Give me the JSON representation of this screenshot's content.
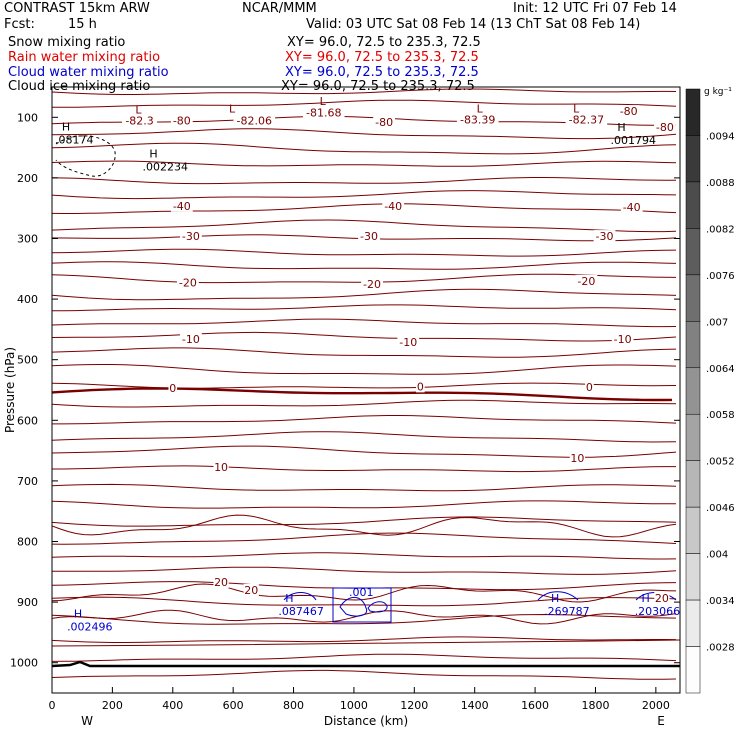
{
  "header": {
    "title": "CONTRAST 15km ARW",
    "org": "NCAR/MMM",
    "init": "Init: 12 UTC Fri 07 Feb 14",
    "fcst_label": "Fcst:",
    "fcst_value": "15 h",
    "valid": "Valid: 03 UTC Sat 08 Feb 14 (13 ChT Sat 08 Feb 14)",
    "fields": [
      {
        "name": "Snow mixing ratio",
        "xy": "XY=  96.0, 72.5 to 235.3, 72.5",
        "color": "#000000"
      },
      {
        "name": "Rain water mixing ratio",
        "xy": "XY=  96.0, 72.5 to 235.3, 72.5",
        "color": "#e00000"
      },
      {
        "name": "Cloud water mixing ratio",
        "xy": "XY=  96.0, 72.5 to 235.3, 72.5",
        "color": "#0000cc"
      },
      {
        "name": "Cloud ice mixing ratio",
        "xy": "XY=  96.0, 72.5 to 235.3, 72.5",
        "color": "#000000"
      }
    ]
  },
  "chart_data": {
    "type": "contour",
    "xlabel": "Distance (km)",
    "ylabel": "Pressure (hPa)",
    "xlim": [
      0,
      2080
    ],
    "ylim": [
      1050,
      50
    ],
    "x_ticks": [
      0,
      200,
      400,
      600,
      800,
      1000,
      1200,
      1400,
      1600,
      1800,
      2000
    ],
    "y_ticks": [
      100,
      200,
      300,
      400,
      500,
      600,
      700,
      800,
      900,
      1000
    ],
    "x_ends": {
      "left": "W",
      "right": "E"
    },
    "temperature_contour_color": "#7a0000",
    "cloud_water_color": "#0000cc",
    "contour_labels": [
      {
        "text": "-82.3",
        "x": 290,
        "p": 105
      },
      {
        "text": "-80",
        "x": 430,
        "p": 105
      },
      {
        "text": "-82.06",
        "x": 670,
        "p": 105
      },
      {
        "text": "-81.68",
        "x": 900,
        "p": 92
      },
      {
        "text": "-80",
        "x": 1100,
        "p": 108
      },
      {
        "text": "-83.39",
        "x": 1410,
        "p": 104
      },
      {
        "text": "-82.37",
        "x": 1770,
        "p": 104
      },
      {
        "text": "-80",
        "x": 1910,
        "p": 90
      },
      {
        "text": "-80",
        "x": 2030,
        "p": 116
      },
      {
        "text": "-40",
        "x": 430,
        "p": 246
      },
      {
        "text": "-40",
        "x": 1130,
        "p": 246
      },
      {
        "text": "-40",
        "x": 1920,
        "p": 248
      },
      {
        "text": "-30",
        "x": 460,
        "p": 296
      },
      {
        "text": "-30",
        "x": 1050,
        "p": 296
      },
      {
        "text": "-30",
        "x": 1830,
        "p": 296
      },
      {
        "text": "-20",
        "x": 450,
        "p": 373
      },
      {
        "text": "-20",
        "x": 1060,
        "p": 375
      },
      {
        "text": "-20",
        "x": 1770,
        "p": 370
      },
      {
        "text": "-10",
        "x": 460,
        "p": 466
      },
      {
        "text": "-10",
        "x": 1180,
        "p": 471
      },
      {
        "text": "-10",
        "x": 1890,
        "p": 466
      },
      {
        "text": "0",
        "x": 400,
        "p": 547
      },
      {
        "text": "0",
        "x": 1220,
        "p": 544
      },
      {
        "text": "0",
        "x": 1780,
        "p": 545
      },
      {
        "text": "10",
        "x": 560,
        "p": 677
      },
      {
        "text": "10",
        "x": 1740,
        "p": 662
      },
      {
        "text": "20",
        "x": 560,
        "p": 867
      },
      {
        "text": "20",
        "x": 660,
        "p": 880
      },
      {
        "text": "20",
        "x": 2020,
        "p": 893
      }
    ],
    "extrema_labels": [
      {
        "marker": "L",
        "x": 240,
        "p": 94,
        "color": "#7a0000"
      },
      {
        "marker": "L",
        "x": 550,
        "p": 92,
        "color": "#7a0000"
      },
      {
        "marker": "L",
        "x": 850,
        "p": 80,
        "color": "#7a0000"
      },
      {
        "marker": "L",
        "x": 1370,
        "p": 92,
        "color": "#7a0000"
      },
      {
        "marker": "L",
        "x": 1690,
        "p": 92,
        "color": "#7a0000"
      },
      {
        "marker": "H",
        "x": 0,
        "p": 122,
        "value": ".08174",
        "color": "#000000"
      },
      {
        "marker": "H",
        "x": 290,
        "p": 166,
        "value": ".002234",
        "color": "#000000"
      },
      {
        "marker": "H",
        "x": 1840,
        "p": 123,
        "value": ".001794",
        "color": "#000000"
      },
      {
        "marker": "H",
        "x": 40,
        "p": 925,
        "value": ".002496",
        "color": "#0000cc"
      },
      {
        "marker": "H",
        "x": 740,
        "p": 900,
        "value": ".087467",
        "color": "#0000cc"
      },
      {
        "marker": "H",
        "x": 1620,
        "p": 900,
        "value": ".269787",
        "color": "#0000cc"
      },
      {
        "marker": "H",
        "x": 1920,
        "p": 900,
        "value": ".203066",
        "color": "#0000cc"
      }
    ],
    "cloud_water_contour_label": ".001",
    "colorbar": {
      "unit": "g kg⁻¹",
      "values": [
        ".0094",
        ".0088",
        ".0082",
        ".0076",
        ".007",
        ".0064",
        ".0058",
        ".0052",
        ".0046",
        ".004",
        ".0034",
        ".0028"
      ]
    }
  }
}
